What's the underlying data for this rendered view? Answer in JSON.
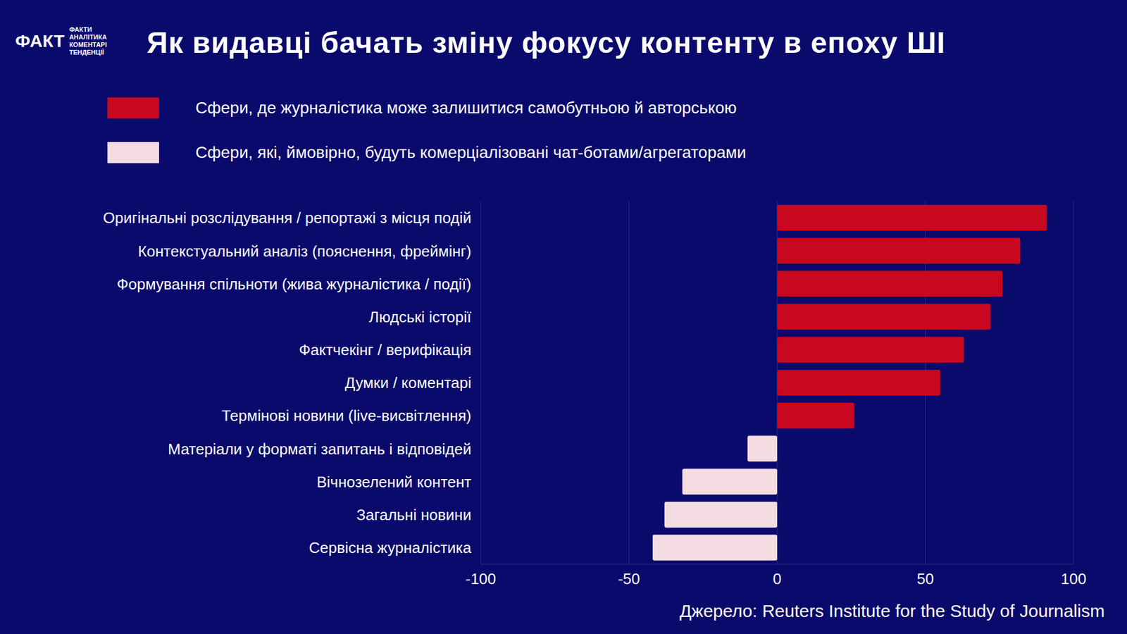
{
  "chart_data": {
    "type": "bar",
    "title": "Як видавці бачать зміну фокусу контенту в епоху ШІ",
    "logo": "ФАКТ",
    "brand": [
      "ФАКТИ",
      "АНАЛІТИКА",
      "КОМЕНТАРІ",
      "ТЕНДЕНЦІЇ"
    ],
    "source": "Джерело: Reuters Institute for the Study of Journalism",
    "orientation": "horizontal",
    "stacked": true,
    "legend": "top",
    "grid": true,
    "categories": [
      "Оригінальні розслідування / репортажі з місця подій",
      "Контекстуальний аналіз (пояснення, фреймінг)",
      "Формування спільноти (жива журналістика / події)",
      "Людські історії",
      "Фактчекінг / верифікація",
      "Думки / коментарі",
      "Термінові новини (live-висвітлення)",
      "Матеріали у форматі запитань і відповідей",
      "Вічнозелений контент",
      "Загальні новини",
      "Сервісна журналістика"
    ],
    "series": [
      {
        "name": "Сфери, де журналістика може залишитися самобутньою й авторською",
        "color": "#c8081e",
        "values": [
          91,
          82,
          76,
          72,
          63,
          55,
          26,
          null,
          null,
          null,
          null
        ]
      },
      {
        "name": "Сфери, які, ймовірно, будуть комерціалізовані чат-ботами/агрегаторами",
        "color": "#f5dce2",
        "values": [
          null,
          null,
          null,
          null,
          null,
          null,
          null,
          -10,
          -32,
          -38,
          -42
        ]
      }
    ],
    "xlim": [
      -100,
      100
    ],
    "xticks": [
      -100,
      -50,
      0,
      50,
      100
    ]
  }
}
